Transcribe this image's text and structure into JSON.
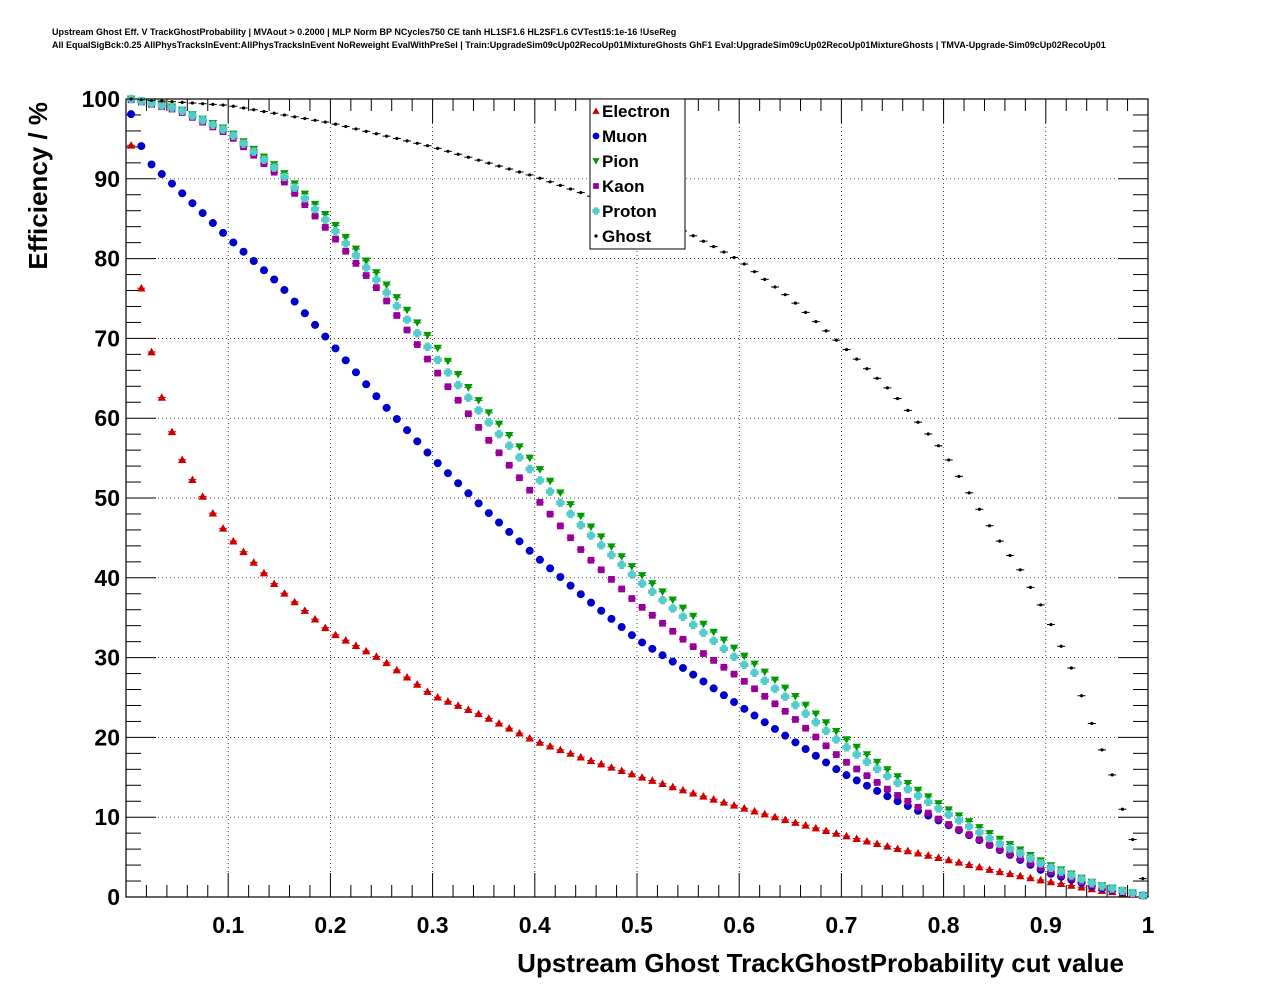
{
  "title_lines": [
    "Upstream Ghost Eff. V TrackGhostProbability | MVAout > 0.2000 | MLP Norm BP NCycles750 CE tanh HL1SF1.6 HL2SF1.6 CVTest15:1e-16 !UseReg",
    "All EqualSigBck:0.25 AllPhysTracksInEvent:AllPhysTracksInEvent NoReweight EvalWithPreSel | Train:UpgradeSim09cUp02RecoUp01MixtureGhosts GhF1 Eval:UpgradeSim09cUp02RecoUp01MixtureGhosts | TMVA-Upgrade-Sim09cUp02RecoUp01"
  ],
  "chart_data": {
    "type": "scatter",
    "xlabel": "Upstream Ghost TrackGhostProbability cut value",
    "ylabel": "Efficiency / %",
    "xlim": [
      0,
      1
    ],
    "ylim": [
      0,
      100
    ],
    "xticks": [
      "0.1",
      "0.2",
      "0.3",
      "0.4",
      "0.5",
      "0.6",
      "0.7",
      "0.8",
      "0.9",
      "1"
    ],
    "yticks": [
      "0",
      "10",
      "20",
      "30",
      "40",
      "50",
      "60",
      "70",
      "80",
      "90",
      "100"
    ],
    "grid": true,
    "legend_position": "top-center",
    "x_step": 0.01,
    "x_start": 0.005,
    "series": [
      {
        "name": "Electron",
        "color": "#cc0000",
        "marker": "triangle-up",
        "anchors": [
          [
            0.005,
            94.2
          ],
          [
            0.015,
            76.3
          ],
          [
            0.025,
            68.3
          ],
          [
            0.035,
            62.6
          ],
          [
            0.045,
            58.3
          ],
          [
            0.055,
            54.8
          ],
          [
            0.065,
            52.3
          ],
          [
            0.075,
            50.2
          ],
          [
            0.085,
            48.1
          ],
          [
            0.095,
            46.2
          ],
          [
            0.105,
            44.6
          ],
          [
            0.12,
            42.6
          ],
          [
            0.15,
            38.6
          ],
          [
            0.2,
            33.2
          ],
          [
            0.25,
            29.8
          ],
          [
            0.3,
            25.3
          ],
          [
            0.35,
            22.7
          ],
          [
            0.4,
            19.6
          ],
          [
            0.45,
            17.3
          ],
          [
            0.5,
            15.2
          ],
          [
            0.55,
            13.2
          ],
          [
            0.6,
            11.3
          ],
          [
            0.65,
            9.5
          ],
          [
            0.7,
            7.8
          ],
          [
            0.75,
            6.2
          ],
          [
            0.8,
            4.8
          ],
          [
            0.85,
            3.3
          ],
          [
            0.9,
            2.0
          ],
          [
            0.95,
            0.9
          ],
          [
            0.995,
            0.15
          ]
        ]
      },
      {
        "name": "Muon",
        "color": "#0000cc",
        "marker": "circle",
        "anchors": [
          [
            0.005,
            98.1
          ],
          [
            0.015,
            94.1
          ],
          [
            0.025,
            91.8
          ],
          [
            0.035,
            90.6
          ],
          [
            0.05,
            88.8
          ],
          [
            0.1,
            82.6
          ],
          [
            0.15,
            76.8
          ],
          [
            0.2,
            69.5
          ],
          [
            0.25,
            62.0
          ],
          [
            0.3,
            55.0
          ],
          [
            0.35,
            48.7
          ],
          [
            0.4,
            42.8
          ],
          [
            0.45,
            37.4
          ],
          [
            0.5,
            32.3
          ],
          [
            0.55,
            28.3
          ],
          [
            0.6,
            24.0
          ],
          [
            0.65,
            19.8
          ],
          [
            0.7,
            15.6
          ],
          [
            0.75,
            12.3
          ],
          [
            0.8,
            9.3
          ],
          [
            0.85,
            6.2
          ],
          [
            0.9,
            3.1
          ],
          [
            0.95,
            1.2
          ],
          [
            0.995,
            0.2
          ]
        ]
      },
      {
        "name": "Pion",
        "color": "#009900",
        "marker": "triangle-down",
        "anchors": [
          [
            0.005,
            100.0
          ],
          [
            0.05,
            98.9
          ],
          [
            0.1,
            96.1
          ],
          [
            0.15,
            91.3
          ],
          [
            0.2,
            84.9
          ],
          [
            0.25,
            77.5
          ],
          [
            0.3,
            69.6
          ],
          [
            0.35,
            61.4
          ],
          [
            0.4,
            54.3
          ],
          [
            0.45,
            47.0
          ],
          [
            0.5,
            40.8
          ],
          [
            0.55,
            35.7
          ],
          [
            0.6,
            30.7
          ],
          [
            0.65,
            25.7
          ],
          [
            0.7,
            20.2
          ],
          [
            0.75,
            15.5
          ],
          [
            0.8,
            11.3
          ],
          [
            0.85,
            7.6
          ],
          [
            0.9,
            4.2
          ],
          [
            0.95,
            1.6
          ],
          [
            0.995,
            0.2
          ]
        ]
      },
      {
        "name": "Kaon",
        "color": "#990099",
        "marker": "square",
        "anchors": [
          [
            0.005,
            99.9
          ],
          [
            0.05,
            98.6
          ],
          [
            0.1,
            95.6
          ],
          [
            0.15,
            90.3
          ],
          [
            0.2,
            83.2
          ],
          [
            0.25,
            75.6
          ],
          [
            0.3,
            66.5
          ],
          [
            0.35,
            58.0
          ],
          [
            0.4,
            50.2
          ],
          [
            0.45,
            42.8
          ],
          [
            0.5,
            36.8
          ],
          [
            0.55,
            31.8
          ],
          [
            0.6,
            27.5
          ],
          [
            0.65,
            22.8
          ],
          [
            0.7,
            17.3
          ],
          [
            0.75,
            13.1
          ],
          [
            0.8,
            9.4
          ],
          [
            0.85,
            6.2
          ],
          [
            0.9,
            3.4
          ],
          [
            0.95,
            1.3
          ],
          [
            0.995,
            0.2
          ]
        ]
      },
      {
        "name": "Proton",
        "color": "#55cccc",
        "marker": "cross",
        "anchors": [
          [
            0.005,
            100.0
          ],
          [
            0.05,
            98.8
          ],
          [
            0.1,
            95.9
          ],
          [
            0.15,
            90.9
          ],
          [
            0.2,
            84.2
          ],
          [
            0.25,
            76.6
          ],
          [
            0.3,
            68.1
          ],
          [
            0.35,
            60.2
          ],
          [
            0.4,
            52.9
          ],
          [
            0.45,
            45.9
          ],
          [
            0.5,
            39.8
          ],
          [
            0.55,
            34.6
          ],
          [
            0.6,
            29.6
          ],
          [
            0.65,
            24.6
          ],
          [
            0.7,
            19.2
          ],
          [
            0.75,
            14.7
          ],
          [
            0.8,
            10.7
          ],
          [
            0.85,
            7.0
          ],
          [
            0.9,
            3.9
          ],
          [
            0.95,
            1.5
          ],
          [
            0.995,
            0.2
          ]
        ]
      },
      {
        "name": "Ghost",
        "color": "#000000",
        "marker": "dot",
        "anchors": [
          [
            0.005,
            100.0
          ],
          [
            0.1,
            99.2
          ],
          [
            0.2,
            97.0
          ],
          [
            0.3,
            94.0
          ],
          [
            0.4,
            90.3
          ],
          [
            0.5,
            85.8
          ],
          [
            0.55,
            83.2
          ],
          [
            0.6,
            79.8
          ],
          [
            0.65,
            75.0
          ],
          [
            0.7,
            69.2
          ],
          [
            0.75,
            63.2
          ],
          [
            0.8,
            55.8
          ],
          [
            0.85,
            45.5
          ],
          [
            0.875,
            41.0
          ],
          [
            0.9,
            35.5
          ],
          [
            0.925,
            28.7
          ],
          [
            0.95,
            20.0
          ],
          [
            0.965,
            15.3
          ],
          [
            0.975,
            11.0
          ],
          [
            0.985,
            7.2
          ],
          [
            0.995,
            2.3
          ]
        ]
      }
    ]
  }
}
